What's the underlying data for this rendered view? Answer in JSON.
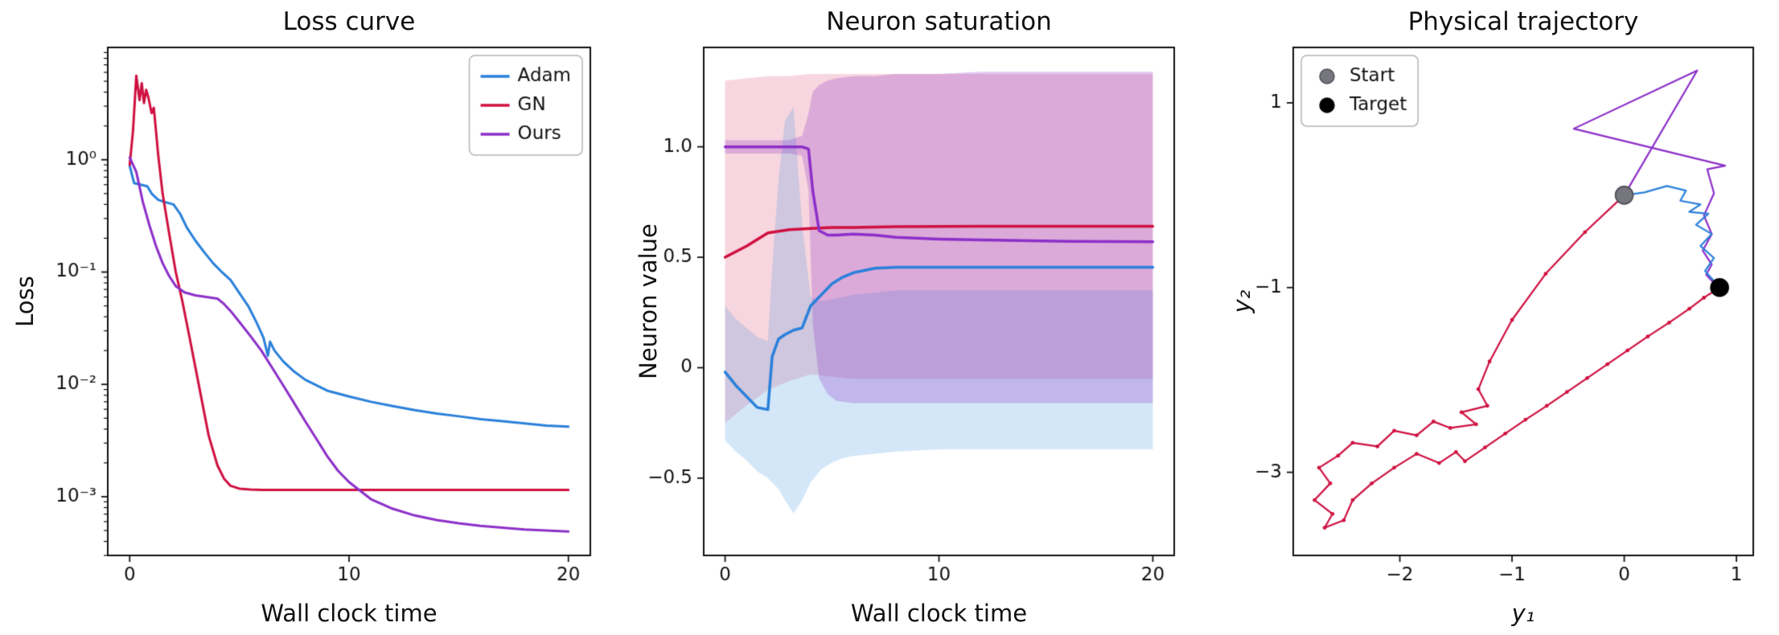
{
  "figure": {
    "background": "#ffffff",
    "text_color": "#111111"
  },
  "chart_data": [
    {
      "type": "line",
      "title": "Loss curve",
      "xlabel": "Wall clock time",
      "ylabel": "Loss",
      "xlim": [
        -1,
        21
      ],
      "ylim": [
        0.0003,
        10
      ],
      "yscale": "log",
      "grid": false,
      "xticks": [
        0,
        10,
        20
      ],
      "xtick_labels": [
        "0",
        "10",
        "20"
      ],
      "yticks": [
        1,
        0.1,
        0.01,
        0.001
      ],
      "ytick_labels": [
        "10⁰",
        "10⁻¹",
        "10⁻²",
        "10⁻³"
      ],
      "legend": {
        "loc": "upper-right",
        "entries": [
          {
            "label": "Adam",
            "color": "#2a80da",
            "marker": "line"
          },
          {
            "label": "GN",
            "color": "#cf1040",
            "marker": "line"
          },
          {
            "label": "Ours",
            "color": "#8c2fc9",
            "marker": "line"
          }
        ]
      },
      "series": [
        {
          "name": "Adam",
          "color": "#2a80da",
          "width": 3,
          "x": [
            0,
            0.2,
            0.5,
            0.8,
            1.0,
            1.3,
            1.6,
            2.0,
            2.3,
            2.6,
            3.0,
            3.4,
            3.8,
            4.2,
            4.6,
            5.0,
            5.4,
            5.8,
            6.1,
            6.3,
            6.4,
            6.6,
            7.0,
            7.5,
            8.0,
            9.0,
            10,
            11,
            12,
            13,
            14,
            15,
            16,
            17,
            18,
            19,
            20
          ],
          "y": [
            0.88,
            0.62,
            0.6,
            0.58,
            0.5,
            0.44,
            0.42,
            0.4,
            0.33,
            0.25,
            0.19,
            0.15,
            0.12,
            0.1,
            0.085,
            0.065,
            0.05,
            0.035,
            0.026,
            0.018,
            0.024,
            0.02,
            0.016,
            0.013,
            0.011,
            0.0088,
            0.0078,
            0.007,
            0.0064,
            0.0059,
            0.0055,
            0.0052,
            0.0049,
            0.0047,
            0.0045,
            0.0043,
            0.0042
          ]
        },
        {
          "name": "GN",
          "color": "#cf1040",
          "width": 3,
          "x": [
            0,
            0.15,
            0.3,
            0.45,
            0.55,
            0.65,
            0.75,
            0.85,
            1.0,
            1.1,
            1.3,
            1.5,
            1.8,
            2.1,
            2.4,
            2.7,
            3.0,
            3.3,
            3.6,
            4.0,
            4.3,
            4.6,
            5.0,
            5.5,
            6.0,
            8,
            10,
            15,
            20
          ],
          "y": [
            0.9,
            1.8,
            5.6,
            3.4,
            4.8,
            3.2,
            4.2,
            3.6,
            2.6,
            2.9,
            1.1,
            0.5,
            0.22,
            0.1,
            0.055,
            0.028,
            0.014,
            0.007,
            0.0035,
            0.0019,
            0.00145,
            0.00125,
            0.00118,
            0.00116,
            0.00115,
            0.00115,
            0.00115,
            0.00115,
            0.00115
          ]
        },
        {
          "name": "Ours",
          "color": "#8c2fc9",
          "width": 3,
          "x": [
            0,
            0.3,
            0.6,
            0.9,
            1.2,
            1.5,
            1.8,
            2.1,
            2.5,
            3.0,
            3.5,
            4.0,
            4.3,
            4.6,
            5.0,
            5.5,
            6.0,
            6.5,
            7.0,
            7.5,
            8.0,
            8.5,
            9.0,
            9.5,
            10,
            11,
            12,
            13,
            14,
            15,
            16,
            17,
            18,
            19,
            20
          ],
          "y": [
            1.05,
            0.78,
            0.42,
            0.26,
            0.17,
            0.12,
            0.092,
            0.075,
            0.066,
            0.062,
            0.06,
            0.058,
            0.052,
            0.045,
            0.036,
            0.027,
            0.02,
            0.014,
            0.0098,
            0.0068,
            0.0047,
            0.0033,
            0.0023,
            0.0017,
            0.00135,
            0.00095,
            0.00078,
            0.00068,
            0.00062,
            0.00058,
            0.00055,
            0.00053,
            0.00051,
            0.0005,
            0.00049
          ]
        }
      ]
    },
    {
      "type": "line-band",
      "title": "Neuron saturation",
      "xlabel": "Wall clock time",
      "ylabel": "Neuron value",
      "xlim": [
        -1,
        21
      ],
      "ylim": [
        -0.85,
        1.45
      ],
      "yscale": "linear",
      "grid": false,
      "xticks": [
        0,
        10,
        20
      ],
      "xtick_labels": [
        "0",
        "10",
        "20"
      ],
      "yticks": [
        1.0,
        0.5,
        0,
        -0.5
      ],
      "ytick_labels": [
        "1.0",
        "0.5",
        "0",
        "−0.5"
      ],
      "series": [
        {
          "name": "GN",
          "color": "#cf1040",
          "width": 3.5,
          "band_color": "rgba(215,30,75,0.18)",
          "x": [
            0,
            1,
            2,
            3,
            4,
            5,
            6,
            8,
            12,
            20
          ],
          "y": [
            0.5,
            0.55,
            0.61,
            0.625,
            0.63,
            0.635,
            0.635,
            0.638,
            0.64,
            0.64
          ],
          "band_lower": [
            -0.25,
            -0.17,
            -0.1,
            -0.06,
            -0.03,
            -0.04,
            -0.05,
            -0.05,
            -0.05,
            -0.05
          ],
          "band_upper": [
            1.3,
            1.31,
            1.32,
            1.32,
            1.33,
            1.33,
            1.33,
            1.33,
            1.33,
            1.33
          ]
        },
        {
          "name": "Adam",
          "color": "#2a80da",
          "width": 3.5,
          "band_color": "rgba(60,145,225,0.22)",
          "x": [
            0,
            0.5,
            1,
            1.5,
            2,
            2.2,
            2.5,
            2.8,
            3.2,
            3.6,
            4,
            4.5,
            5,
            5.5,
            6,
            7,
            8,
            10,
            14,
            20
          ],
          "y": [
            -0.02,
            -0.08,
            -0.13,
            -0.18,
            -0.19,
            0.05,
            0.13,
            0.15,
            0.17,
            0.18,
            0.28,
            0.33,
            0.38,
            0.41,
            0.43,
            0.45,
            0.455,
            0.455,
            0.455,
            0.455
          ],
          "band_lower": [
            -0.33,
            -0.38,
            -0.42,
            -0.47,
            -0.5,
            -0.52,
            -0.55,
            -0.6,
            -0.66,
            -0.6,
            -0.52,
            -0.46,
            -0.43,
            -0.41,
            -0.4,
            -0.39,
            -0.38,
            -0.37,
            -0.37,
            -0.37
          ],
          "band_upper": [
            0.28,
            0.22,
            0.18,
            0.14,
            0.12,
            0.45,
            0.85,
            1.12,
            1.18,
            0.65,
            0.32,
            0.3,
            0.31,
            0.32,
            0.33,
            0.34,
            0.35,
            0.35,
            0.35,
            0.35
          ]
        },
        {
          "name": "Ours",
          "color": "#8c2fc9",
          "width": 3.5,
          "band_color": "rgba(140,47,201,0.26)",
          "x": [
            0,
            1,
            2,
            3,
            3.6,
            3.9,
            4.1,
            4.4,
            4.8,
            5.2,
            6,
            7,
            8,
            10,
            12,
            16,
            20
          ],
          "y": [
            1.0,
            1.0,
            1.0,
            1.0,
            1.0,
            0.99,
            0.8,
            0.62,
            0.6,
            0.6,
            0.605,
            0.6,
            0.59,
            0.582,
            0.578,
            0.572,
            0.57
          ],
          "band_lower": [
            0.97,
            0.97,
            0.97,
            0.97,
            0.96,
            0.8,
            0.2,
            -0.05,
            -0.12,
            -0.15,
            -0.16,
            -0.16,
            -0.16,
            -0.16,
            -0.16,
            -0.16,
            -0.16
          ],
          "band_upper": [
            1.03,
            1.03,
            1.03,
            1.03,
            1.05,
            1.15,
            1.25,
            1.28,
            1.3,
            1.31,
            1.32,
            1.32,
            1.33,
            1.33,
            1.34,
            1.34,
            1.34
          ]
        }
      ]
    },
    {
      "type": "line",
      "title": "Physical trajectory",
      "xlabel": "y₁",
      "ylabel": "y₂",
      "xlim": [
        -2.95,
        1.15
      ],
      "ylim": [
        -3.9,
        1.6
      ],
      "yscale": "linear",
      "grid": false,
      "xticks": [
        -2,
        -1,
        0,
        1
      ],
      "xtick_labels": [
        "−2",
        "−1",
        "0",
        "1"
      ],
      "yticks": [
        1,
        -1,
        -3
      ],
      "ytick_labels": [
        "1",
        "−1",
        "−3"
      ],
      "legend": {
        "loc": "upper-left",
        "entries": [
          {
            "label": "Start",
            "color": "#76767e",
            "edge": "#4a4a52",
            "marker": "circle"
          },
          {
            "label": "Target",
            "color": "#000000",
            "edge": "#000000",
            "marker": "circle"
          }
        ]
      },
      "series": [
        {
          "name": "Ours",
          "color": "#8c2fc9",
          "width": 2.2,
          "x": [
            0,
            0.65,
            -0.45,
            0.9,
            0.74,
            0.8,
            0.71,
            0.78,
            0.7,
            0.78,
            0.73,
            0.8,
            0.84
          ],
          "y": [
            0,
            1.35,
            0.72,
            0.32,
            0.28,
            0.02,
            -0.22,
            -0.42,
            -0.6,
            -0.75,
            -0.86,
            -0.95,
            -0.99
          ]
        },
        {
          "name": "Adam",
          "color": "#2a80da",
          "width": 2.2,
          "x": [
            0,
            0.18,
            0.38,
            0.55,
            0.5,
            0.68,
            0.58,
            0.75,
            0.64,
            0.78,
            0.68,
            0.8,
            0.72,
            0.8,
            0.85
          ],
          "y": [
            0,
            0.03,
            0.1,
            0.05,
            -0.06,
            -0.1,
            -0.18,
            -0.2,
            -0.32,
            -0.42,
            -0.55,
            -0.68,
            -0.82,
            -0.93,
            -1.0
          ]
        },
        {
          "name": "GN",
          "color": "#cf1040",
          "width": 2.2,
          "dots": true,
          "dot_r": 2.4,
          "x": [
            0,
            -0.35,
            -0.7,
            -1.0,
            -1.2,
            -1.3,
            -1.22,
            -1.45,
            -1.32,
            -1.55,
            -1.7,
            -1.85,
            -2.05,
            -2.2,
            -2.42,
            -2.55,
            -2.72,
            -2.62,
            -2.76,
            -2.6,
            -2.67,
            -2.5,
            -2.42,
            -2.25,
            -2.05,
            -1.85,
            -1.65,
            -1.5,
            -1.42,
            -1.24,
            -1.06,
            -0.88,
            -0.69,
            -0.51,
            -0.33,
            -0.15,
            0.03,
            0.21,
            0.4,
            0.58,
            0.71,
            0.85
          ],
          "y": [
            0,
            -0.4,
            -0.85,
            -1.35,
            -1.8,
            -2.1,
            -2.28,
            -2.35,
            -2.48,
            -2.52,
            -2.45,
            -2.6,
            -2.55,
            -2.72,
            -2.68,
            -2.82,
            -2.95,
            -3.12,
            -3.3,
            -3.45,
            -3.6,
            -3.52,
            -3.3,
            -3.12,
            -2.95,
            -2.8,
            -2.9,
            -2.78,
            -2.88,
            -2.73,
            -2.58,
            -2.43,
            -2.28,
            -2.13,
            -1.98,
            -1.83,
            -1.68,
            -1.53,
            -1.38,
            -1.23,
            -1.11,
            -1.0
          ]
        }
      ],
      "points": [
        {
          "label": "Start",
          "x": 0,
          "y": 0,
          "r": 11,
          "color": "#76767e",
          "edge": "#4a4a52"
        },
        {
          "label": "Target",
          "x": 0.85,
          "y": -1.0,
          "r": 11,
          "color": "#000000",
          "edge": "#000000"
        }
      ]
    }
  ]
}
